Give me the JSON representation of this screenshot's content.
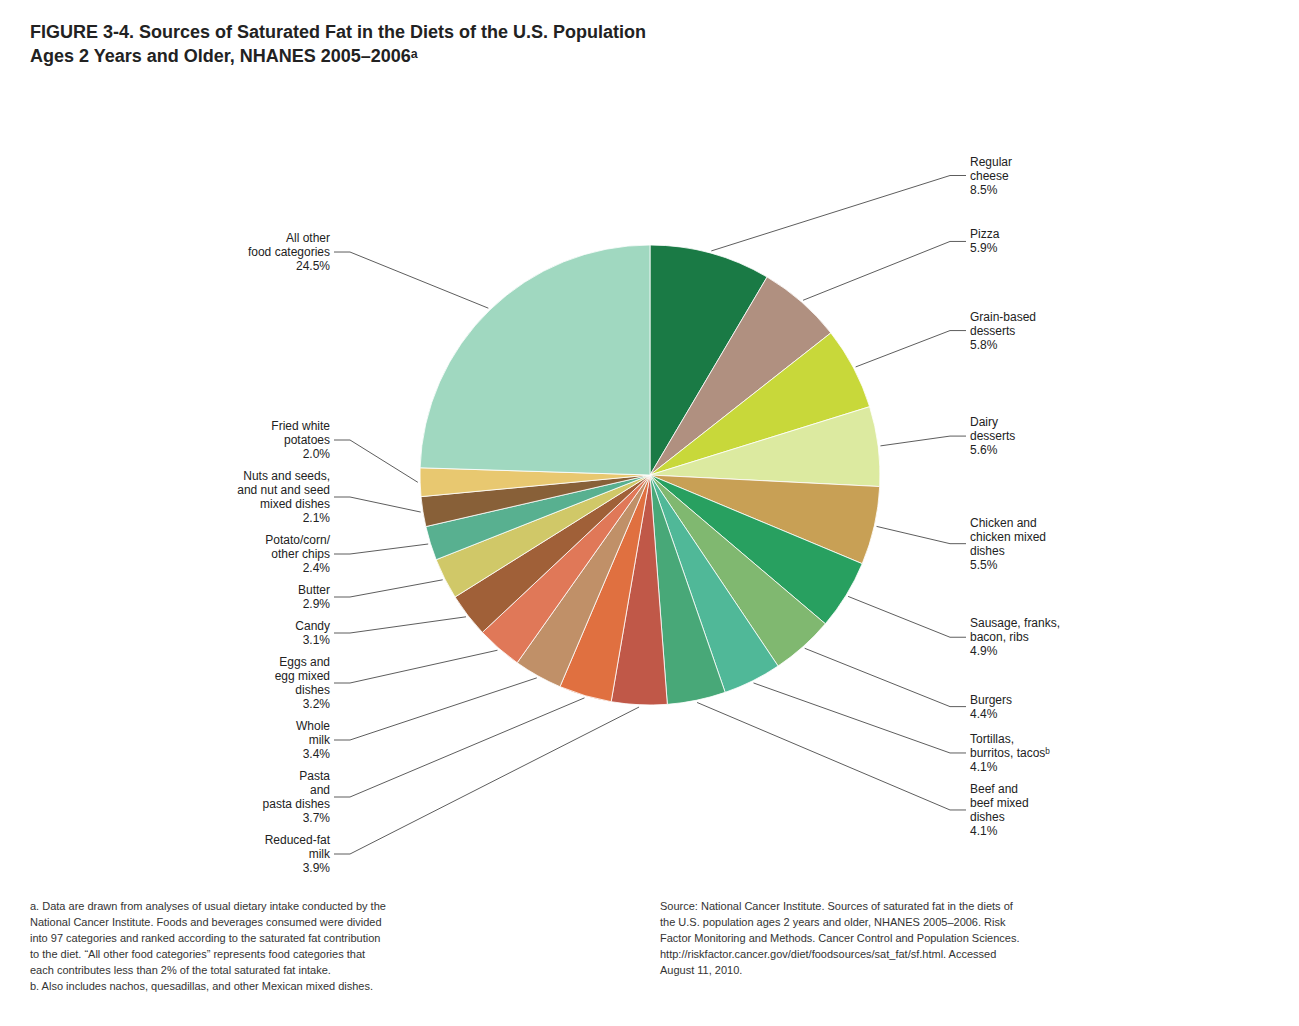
{
  "chart_data": {
    "type": "pie",
    "title": "FIGURE 3-4. Sources of Saturated Fat in the Diets of the U.S. Population",
    "subtitle": "Ages 2 Years and Older, NHANES 2005–2006ᵃ",
    "categories": [
      "Regular\ncheese",
      "Pizza",
      "Grain-based\ndesserts",
      "Dairy\ndesserts",
      "Chicken and\nchicken mixed\ndishes",
      "Sausage, franks,\nbacon, ribs",
      "Burgers",
      "Tortillas,\nburritos, tacosᵇ",
      "Beef and\nbeef mixed\ndishes",
      "Reduced-fat\nmilk",
      "Pasta\nand\npasta dishes",
      "Whole\nmilk",
      "Eggs and\negg mixed\ndishes",
      "Candy",
      "Butter",
      "Potato/corn/\nother chips",
      "Nuts and seeds,\nand nut and seed\nmixed dishes",
      "Fried white\npotatoes",
      "All other\nfood categories"
    ],
    "values": [
      8.5,
      5.9,
      5.8,
      5.6,
      5.5,
      4.9,
      4.4,
      4.1,
      4.1,
      3.9,
      3.7,
      3.4,
      3.2,
      3.1,
      2.9,
      2.4,
      2.1,
      2.0,
      24.5
    ],
    "value_labels": [
      "8.5%",
      "5.9%",
      "5.8%",
      "5.6%",
      "5.5%",
      "4.9%",
      "4.4%",
      "4.1%",
      "4.1%",
      "3.9%",
      "3.7%",
      "3.4%",
      "3.2%",
      "3.1%",
      "2.9%",
      "2.4%",
      "2.1%",
      "2.0%",
      "24.5%"
    ],
    "data_labels": true,
    "colors": [
      "#1a7a45",
      "#b09080",
      "#c8d83a",
      "#dceaa0",
      "#c8a055",
      "#28a060",
      "#80b870",
      "#50b898",
      "#48a878",
      "#c05848",
      "#e07040",
      "#c09068",
      "#e07858",
      "#a06038",
      "#d0c868",
      "#58b090",
      "#886038",
      "#e8c870",
      "#a0d8c0"
    ],
    "annotations": [
      "a. Data are drawn from analyses of usual dietary intake conducted by the\nNational Cancer Institute. Foods and beverages consumed were divided\ninto 97 categories and ranked according to the saturated fat contribution\nto the diet. “All other food categories” represents food categories that\neach contributes less than 2% of the total saturated fat intake.\nb. Also includes nachos, quesadillas, and other Mexican mixed dishes.",
      "Source: National Cancer Institute. Sources of saturated fat in the diets of\nthe U.S. population ages 2 years and older, NHANES 2005–2006. Risk\nFactor Monitoring and Methods. Cancer Control and Population Sciences.\nhttp://riskfactor.cancer.gov/diet/foodsources/sat_fat/sf.html. Accessed\nAugust 11, 2010."
    ]
  }
}
